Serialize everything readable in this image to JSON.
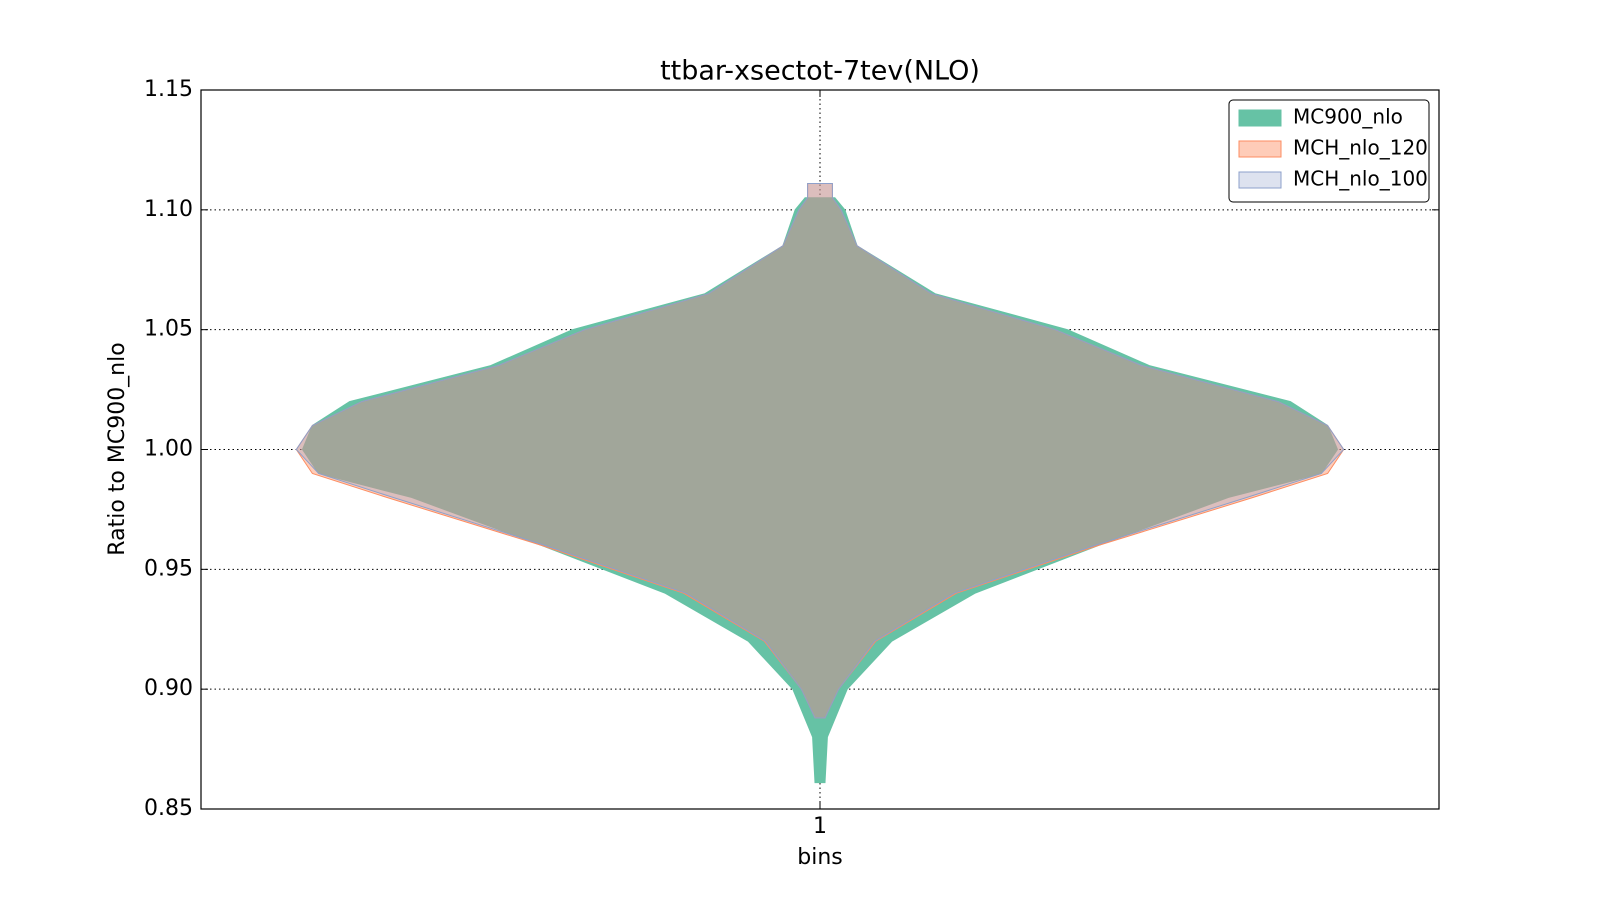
{
  "chart_data": {
    "type": "violin",
    "title": "ttbar-xsectot-7tev(NLO)",
    "x_label": "bins",
    "y_label": "Ratio to MC900_nlo",
    "xlim": [
      0.5,
      1.5
    ],
    "xticks": [
      1
    ],
    "ylim": [
      0.85,
      1.15
    ],
    "yticks": [
      {
        "value": 0.85,
        "label": "0.85"
      },
      {
        "value": 0.9,
        "label": "0.90"
      },
      {
        "value": 0.95,
        "label": "0.95"
      },
      {
        "value": 1.0,
        "label": "1.00"
      },
      {
        "value": 1.05,
        "label": "1.05"
      },
      {
        "value": 1.1,
        "label": "1.10"
      },
      {
        "value": 1.15,
        "label": "1.15"
      }
    ],
    "grid": true,
    "legend": "upper right",
    "series": [
      {
        "name": "MC900_nlo",
        "color": "#66c2a5",
        "alpha": 1,
        "position": 1,
        "y": [
          1.105,
          1.1,
          1.085,
          1.065,
          1.05,
          1.035,
          1.02,
          1.01,
          1.0,
          0.99,
          0.98,
          0.96,
          0.94,
          0.92,
          0.9,
          0.88,
          0.861
        ],
        "half_width": [
          0.012,
          0.02,
          0.03,
          0.093,
          0.2,
          0.266,
          0.38,
          0.41,
          0.418,
          0.405,
          0.33,
          0.225,
          0.125,
          0.058,
          0.022,
          0.006,
          0.004
        ]
      },
      {
        "name": "MCH_nlo_120",
        "color": "#fc8d62",
        "alpha": 0.45,
        "position": 1,
        "y": [
          1.111,
          1.105,
          1.1,
          1.085,
          1.065,
          1.05,
          1.035,
          1.02,
          1.01,
          1.0,
          0.99,
          0.98,
          0.96,
          0.94,
          0.92,
          0.9,
          0.888
        ],
        "half_width": [
          0.01,
          0.01,
          0.017,
          0.03,
          0.09,
          0.19,
          0.26,
          0.37,
          0.41,
          0.423,
          0.41,
          0.35,
          0.225,
          0.11,
          0.045,
          0.015,
          0.004
        ]
      },
      {
        "name": "MCH_nlo_100",
        "color": "#8da0cb",
        "alpha": 0.3,
        "position": 1,
        "y": [
          1.111,
          1.105,
          1.1,
          1.085,
          1.065,
          1.05,
          1.035,
          1.02,
          1.01,
          1.0,
          0.99,
          0.98,
          0.96,
          0.94,
          0.92,
          0.9,
          0.888
        ],
        "half_width": [
          0.01,
          0.01,
          0.017,
          0.03,
          0.09,
          0.19,
          0.26,
          0.37,
          0.41,
          0.423,
          0.405,
          0.345,
          0.222,
          0.108,
          0.044,
          0.015,
          0.004
        ]
      }
    ]
  }
}
